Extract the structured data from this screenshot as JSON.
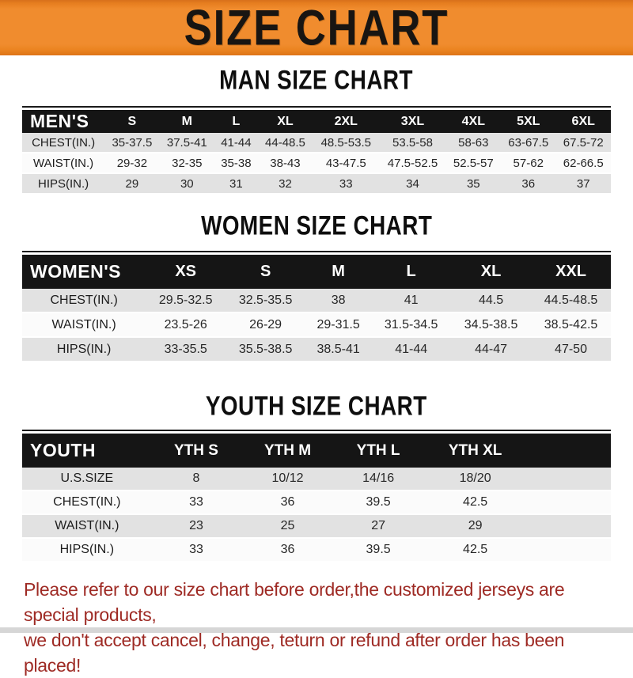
{
  "banner": {
    "title": "SIZE CHART"
  },
  "sections": {
    "men": {
      "heading": "MAN SIZE CHART",
      "table": {
        "label": "MEN'S",
        "sizes": [
          "S",
          "M",
          "L",
          "XL",
          "2XL",
          "3XL",
          "4XL",
          "5XL",
          "6XL"
        ],
        "rows": [
          {
            "label": "CHEST(IN.)",
            "values": [
              "35-37.5",
              "37.5-41",
              "41-44",
              "44-48.5",
              "48.5-53.5",
              "53.5-58",
              "58-63",
              "63-67.5",
              "67.5-72"
            ]
          },
          {
            "label": "WAIST(IN.)",
            "values": [
              "29-32",
              "32-35",
              "35-38",
              "38-43",
              "43-47.5",
              "47.5-52.5",
              "52.5-57",
              "57-62",
              "62-66.5"
            ]
          },
          {
            "label": "HIPS(IN.)",
            "values": [
              "29",
              "30",
              "31",
              "32",
              "33",
              "34",
              "35",
              "36",
              "37"
            ]
          }
        ]
      }
    },
    "women": {
      "heading": "WOMEN SIZE CHART",
      "table": {
        "label": "WOMEN'S",
        "sizes": [
          "XS",
          "S",
          "M",
          "L",
          "XL",
          "XXL"
        ],
        "rows": [
          {
            "label": "CHEST(IN.)",
            "values": [
              "29.5-32.5",
              "32.5-35.5",
              "38",
              "41",
              "44.5",
              "44.5-48.5"
            ]
          },
          {
            "label": "WAIST(IN.)",
            "values": [
              "23.5-26",
              "26-29",
              "29-31.5",
              "31.5-34.5",
              "34.5-38.5",
              "38.5-42.5"
            ]
          },
          {
            "label": "HIPS(IN.)",
            "values": [
              "33-35.5",
              "35.5-38.5",
              "38.5-41",
              "41-44",
              "44-47",
              "47-50"
            ]
          }
        ]
      }
    },
    "youth": {
      "heading": "YOUTH SIZE CHART",
      "table": {
        "label": "YOUTH",
        "sizes": [
          "YTH S",
          "YTH M",
          "YTH L",
          "YTH XL"
        ],
        "rows": [
          {
            "label": "U.S.SIZE",
            "values": [
              "8",
              "10/12",
              "14/16",
              "18/20"
            ]
          },
          {
            "label": "CHEST(IN.)",
            "values": [
              "33",
              "36",
              "39.5",
              "42.5"
            ]
          },
          {
            "label": "WAIST(IN.)",
            "values": [
              "23",
              "25",
              "27",
              "29"
            ]
          },
          {
            "label": "HIPS(IN.)",
            "values": [
              "33",
              "36",
              "39.5",
              "42.5"
            ]
          }
        ]
      }
    }
  },
  "footer": {
    "line1": "Please refer to our size chart before order,the customized jerseys are special products,",
    "line2": "we don't accept cancel, change, teturn or refund after order has been placed!"
  },
  "colors": {
    "banner_orange": "#ef8b2d",
    "header_black": "#151515",
    "row_gray": "#e2e2e2",
    "footer_red": "#9e2a24"
  }
}
